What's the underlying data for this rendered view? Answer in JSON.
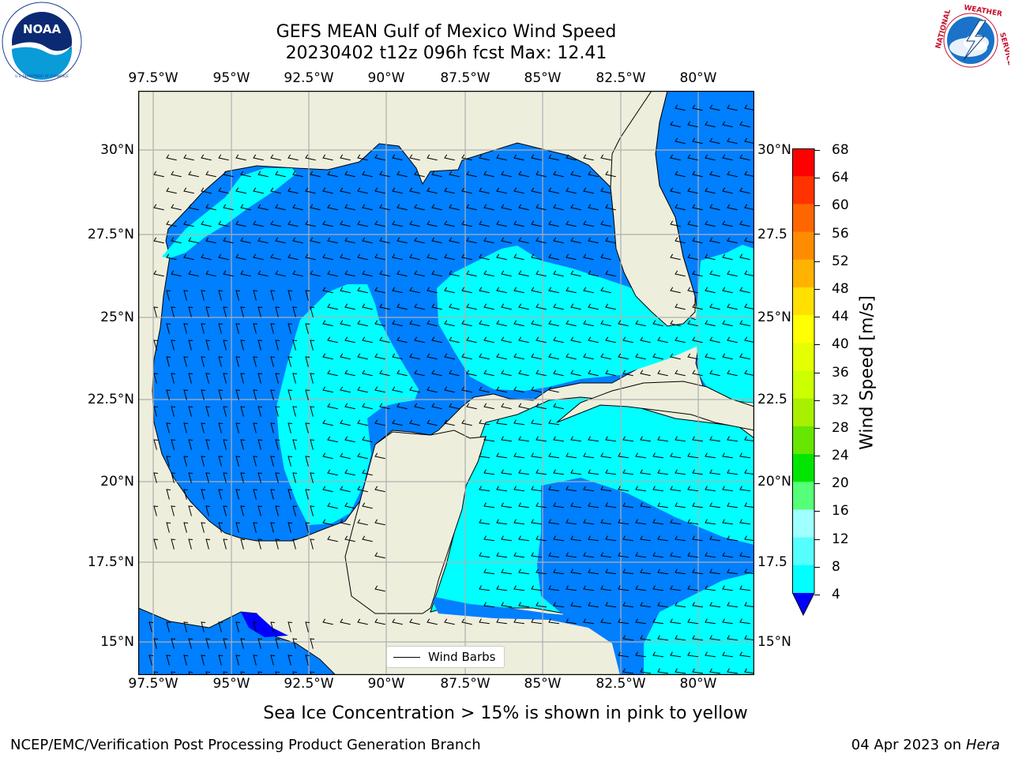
{
  "title": {
    "line1": "GEFS MEAN Gulf of Mexico Wind Speed",
    "line2": "20230402 t12z 096h fcst   Max: 12.41"
  },
  "logos": {
    "left": {
      "icon": "noaa-logo",
      "text": "NOAA",
      "ring_text": "NATIONAL OCEANIC AND ATMOSPHERIC ADMINISTRATION · U.S. DEPARTMENT OF COMMERCE"
    },
    "right": {
      "icon": "nws-logo",
      "ring_text": "NATIONAL WEATHER SERVICE"
    }
  },
  "map": {
    "lon_labels": [
      "97.5°W",
      "95°W",
      "92.5°W",
      "90°W",
      "87.5°W",
      "85°W",
      "82.5°W",
      "80°W"
    ],
    "lat_labels_left": [
      "30°N",
      "27.5°N",
      "25°N",
      "22.5°N",
      "20°N",
      "17.5°N",
      "15°N"
    ],
    "lat_labels_right": [
      "30°N",
      "27.5",
      "25°N",
      "22.5",
      "20°N",
      "17.5",
      "15°N"
    ],
    "legend_label": "Wind Barbs",
    "colors": {
      "land": "#EEEEDC",
      "ocean_4_8": "#007FFF",
      "ocean_8_12": "#00FFFF",
      "ocean_lt_4": "#0000FF"
    }
  },
  "colorbar": {
    "label": "Wind Speed [m/s]",
    "ticks": [
      "68",
      "64",
      "60",
      "56",
      "52",
      "48",
      "44",
      "40",
      "36",
      "32",
      "28",
      "24",
      "20",
      "16",
      "12",
      "8",
      "4"
    ],
    "colors": [
      "#FF0000",
      "#FF3300",
      "#FF6600",
      "#FF8C00",
      "#FFB300",
      "#FFE000",
      "#FFFF00",
      "#E6FF00",
      "#CCFF00",
      "#A8F000",
      "#66E600",
      "#00E600",
      "#55FF77",
      "#A0FFFF",
      "#55FFFF",
      "#00FFFF",
      "#007FFF"
    ],
    "under_color": "#0000FF"
  },
  "note": "Sea Ice Concentration > 15% is shown in pink to yellow",
  "footer": {
    "left": "NCEP/EMC/Verification Post Processing Product Generation Branch",
    "right_date": "04 Apr 2023 on ",
    "right_machine": "Hera"
  }
}
